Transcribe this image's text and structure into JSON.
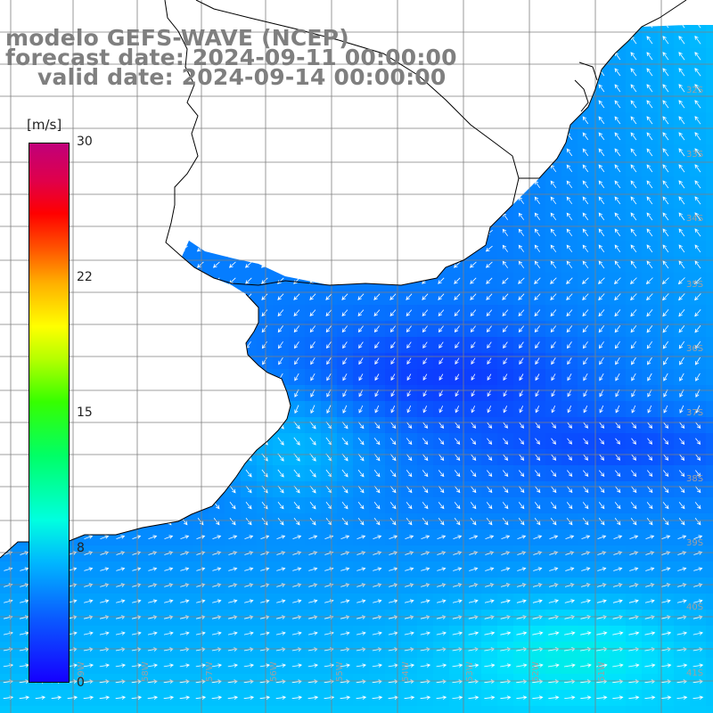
{
  "title": {
    "line1": "modelo GEFS-WAVE (NCEP)",
    "line2": "forecast date: 2024-09-11 00:00:00",
    "line3": "valid date: 2024-09-14 00:00:00"
  },
  "colorbar": {
    "unit": "[m/s]",
    "tick_labels": [
      "30",
      "22",
      "15",
      "8",
      "0"
    ],
    "min": 0,
    "max": 30,
    "colors": [
      "#1500ff",
      "#00b5ff",
      "#00ffe0",
      "#36ff00",
      "#ffff00",
      "#ff5a00",
      "#ff0000",
      "#c0007a"
    ]
  },
  "map": {
    "latitude_labels": [
      "32S",
      "33S",
      "34S",
      "35S",
      "36S",
      "37S",
      "38S",
      "39S",
      "40S",
      "41S"
    ],
    "longitude_labels": [
      "59W",
      "58W",
      "57W",
      "56W",
      "55W",
      "54W",
      "53W",
      "52W",
      "51W"
    ],
    "colors": {
      "land": "#ffffff",
      "coast": "#000000",
      "grid": "#7f7f7f",
      "arrows": "#ffffff",
      "label": "#a0a0a0"
    }
  }
}
